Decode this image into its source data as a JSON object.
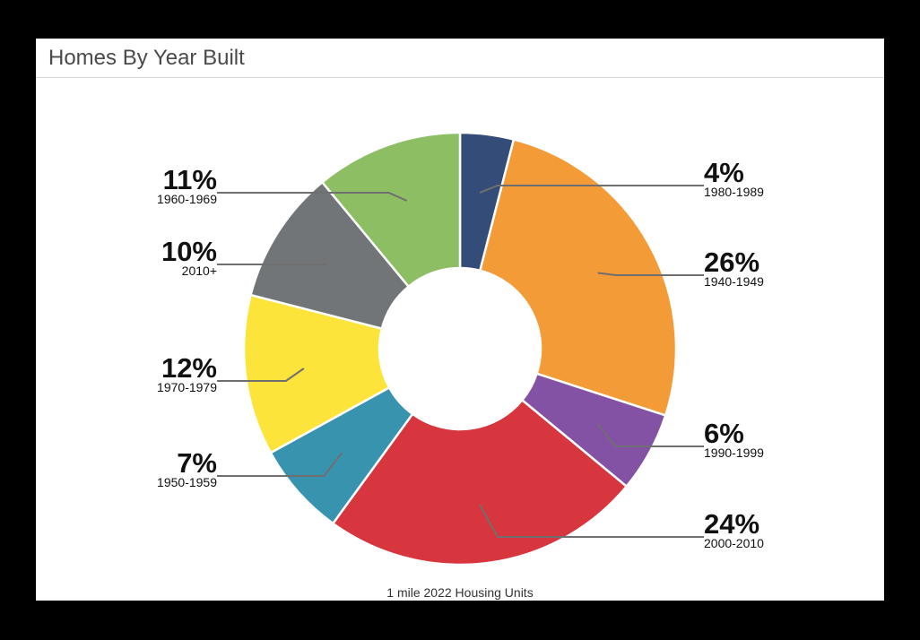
{
  "card": {
    "title": "Homes By Year Built"
  },
  "chart_data": {
    "type": "pie",
    "title": "Homes By Year Built",
    "caption": "1 mile 2022 Housing Units",
    "donut": true,
    "unit": "%",
    "slices": [
      {
        "label": "1980-1989",
        "value": 4,
        "color": "#344c78"
      },
      {
        "label": "1940-1949",
        "value": 26,
        "color": "#f39b36"
      },
      {
        "label": "1990-1999",
        "value": 6,
        "color": "#8352a4"
      },
      {
        "label": "2000-2010",
        "value": 24,
        "color": "#d7363f"
      },
      {
        "label": "1950-1959",
        "value": 7,
        "color": "#3893af"
      },
      {
        "label": "1970-1979",
        "value": 12,
        "color": "#fde43a"
      },
      {
        "label": "2010+",
        "value": 10,
        "color": "#727577"
      },
      {
        "label": "1960-1969",
        "value": 11,
        "color": "#8dbe64"
      }
    ]
  }
}
